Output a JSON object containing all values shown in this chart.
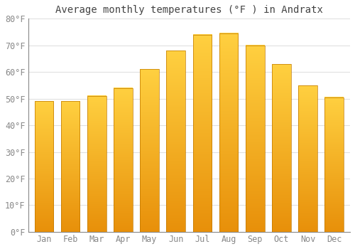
{
  "title": "Average monthly temperatures (°F ) in Andratx",
  "months": [
    "Jan",
    "Feb",
    "Mar",
    "Apr",
    "May",
    "Jun",
    "Jul",
    "Aug",
    "Sep",
    "Oct",
    "Nov",
    "Dec"
  ],
  "values": [
    49,
    49,
    51,
    54,
    61,
    68,
    74,
    74.5,
    70,
    63,
    55,
    50.5
  ],
  "ylim": [
    0,
    80
  ],
  "yticks": [
    0,
    10,
    20,
    30,
    40,
    50,
    60,
    70,
    80
  ],
  "bar_color_dark": "#E8900A",
  "bar_color_light": "#FFD040",
  "bar_edge_color": "#C07800",
  "background_color": "#FFFFFF",
  "grid_color": "#E0E0E0",
  "title_fontsize": 10,
  "tick_fontsize": 8.5
}
